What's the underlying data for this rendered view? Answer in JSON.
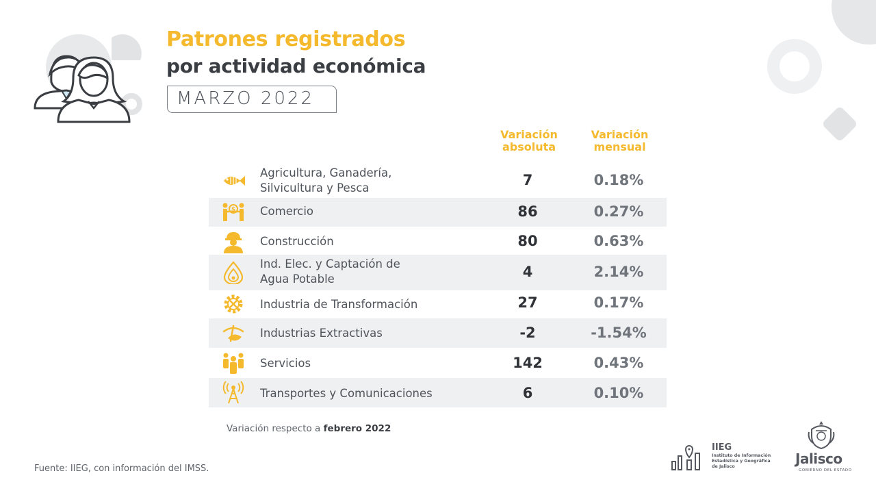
{
  "header": {
    "title_line1": "Patrones registrados",
    "title_line2": "por actividad económica",
    "period": "MARZO 2022"
  },
  "columns": {
    "absolute": [
      "Variación",
      "absoluta"
    ],
    "monthly": [
      "Variación",
      "mensual"
    ]
  },
  "rows": [
    {
      "icon": "fish-icon",
      "label": [
        "Agricultura, Ganadería,",
        "Silvicultura y Pesca"
      ],
      "absolute": "7",
      "monthly": "0.18%"
    },
    {
      "icon": "trade-icon",
      "label": [
        "Comercio"
      ],
      "absolute": "86",
      "monthly": "0.27%"
    },
    {
      "icon": "construction-worker-icon",
      "label": [
        "Construcción"
      ],
      "absolute": "80",
      "monthly": "0.63%"
    },
    {
      "icon": "water-drop-icon",
      "label": [
        "Ind. Elec. y Captación de",
        "Agua Potable"
      ],
      "absolute": "4",
      "monthly": "2.14%"
    },
    {
      "icon": "gear-tools-icon",
      "label": [
        "Industria de Transformación"
      ],
      "absolute": "27",
      "monthly": "0.17%"
    },
    {
      "icon": "mining-icon",
      "label": [
        "Industrias Extractivas"
      ],
      "absolute": "-2",
      "monthly": "-1.54%"
    },
    {
      "icon": "people-icon",
      "label": [
        "Servicios"
      ],
      "absolute": "142",
      "monthly": "0.43%"
    },
    {
      "icon": "antenna-icon",
      "label": [
        "Transportes y Comunicaciones"
      ],
      "absolute": "6",
      "monthly": "0.10%"
    }
  ],
  "footnote": {
    "prefix": "Variación respecto a ",
    "bold": "febrero 2022"
  },
  "source": "Fuente: IIEG, con información del IMSS.",
  "logos": {
    "iieg_name": "IIEG",
    "iieg_full": [
      "Instituto de Información",
      "Estadística y Geográfica",
      "de Jalisco"
    ],
    "jalisco_name": "Jalisco",
    "jalisco_sub": "GOBIERNO DEL ESTADO"
  },
  "colors": {
    "accent": "#f4b92c",
    "dark": "#3a3d42",
    "row_shade": "#eff0f2"
  }
}
